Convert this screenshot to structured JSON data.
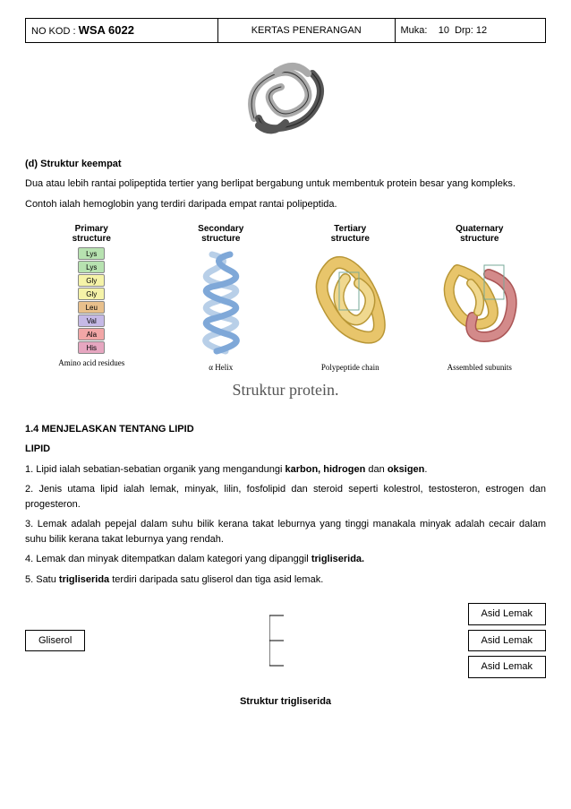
{
  "header": {
    "nokod_label": "NO KOD :",
    "nokod_value": "WSA 6022",
    "center": "KERTAS PENERANGAN",
    "muka_label": "Muka:",
    "muka_page": "10",
    "muka_drp": "Drp: 12"
  },
  "sectionD": {
    "title": "(d) Struktur keempat",
    "line1": "Dua atau lebih rantai polipeptida tertier yang berlipat bergabung untuk membentuk protein besar yang kompleks.",
    "line2": "Contoh ialah hemoglobin yang terdiri daripada empat rantai polipeptida."
  },
  "proteinDiagram": {
    "cols": [
      {
        "title": "Primary\nstructure",
        "label": "Amino acid residues"
      },
      {
        "title": "Secondary\nstructure",
        "label": "α Helix"
      },
      {
        "title": "Tertiary\nstructure",
        "label": "Polypeptide chain"
      },
      {
        "title": "Quaternary\nstructure",
        "label": "Assembled subunits"
      }
    ],
    "caption": "Struktur protein.",
    "aminoAcids": [
      {
        "txt": "Lys",
        "bg": "#b7e2b0"
      },
      {
        "txt": "Lys",
        "bg": "#b7e2b0"
      },
      {
        "txt": "Gly",
        "bg": "#f5f3a8"
      },
      {
        "txt": "Gly",
        "bg": "#f5f3a8"
      },
      {
        "txt": "Leu",
        "bg": "#e8c08c"
      },
      {
        "txt": "Val",
        "bg": "#c5b9e6"
      },
      {
        "txt": "Ala",
        "bg": "#f2a6a6"
      },
      {
        "txt": "His",
        "bg": "#e6a6c0"
      }
    ],
    "helix_color_a": "#7fa8d8",
    "helix_color_b": "#b8cfe8",
    "tertiary_color": "#e8c56b",
    "tertiary_shadow": "#b89635",
    "quat_color_a": "#e8c56b",
    "quat_color_b": "#d38a8a"
  },
  "knot": {
    "color_a": "#aaaaaa",
    "color_b": "#555555",
    "stroke": "#333333"
  },
  "lipid": {
    "heading": "1.4 MENJELASKAN TENTANG LIPID",
    "sub": "LIPID",
    "p1a": "1. Lipid ialah sebatian-sebatian organik yang mengandungi ",
    "p1b": "karbon, hidrogen",
    "p1c": " dan ",
    "p1d": "oksigen",
    "p1e": ".",
    "p2": "2. Jenis utama lipid ialah lemak, minyak, lilin, fosfolipid dan steroid seperti kolestrol, testosteron, estrogen dan progesteron.",
    "p3": "3. Lemak adalah pepejal dalam suhu bilik kerana takat leburnya yang tinggi manakala minyak adalah cecair dalam suhu bilik kerana takat leburnya yang rendah.",
    "p4a": "4. Lemak dan minyak ditempatkan dalam kategori yang dipanggil ",
    "p4b": "trigliserida.",
    "p5a": "5. Satu ",
    "p5b": "trigliserida",
    "p5c": " terdiri daripada satu gliserol dan tiga asid lemak."
  },
  "trig": {
    "gliserol": "Gliserol",
    "asid": "Asid Lemak",
    "caption": "Struktur trigliserida"
  }
}
